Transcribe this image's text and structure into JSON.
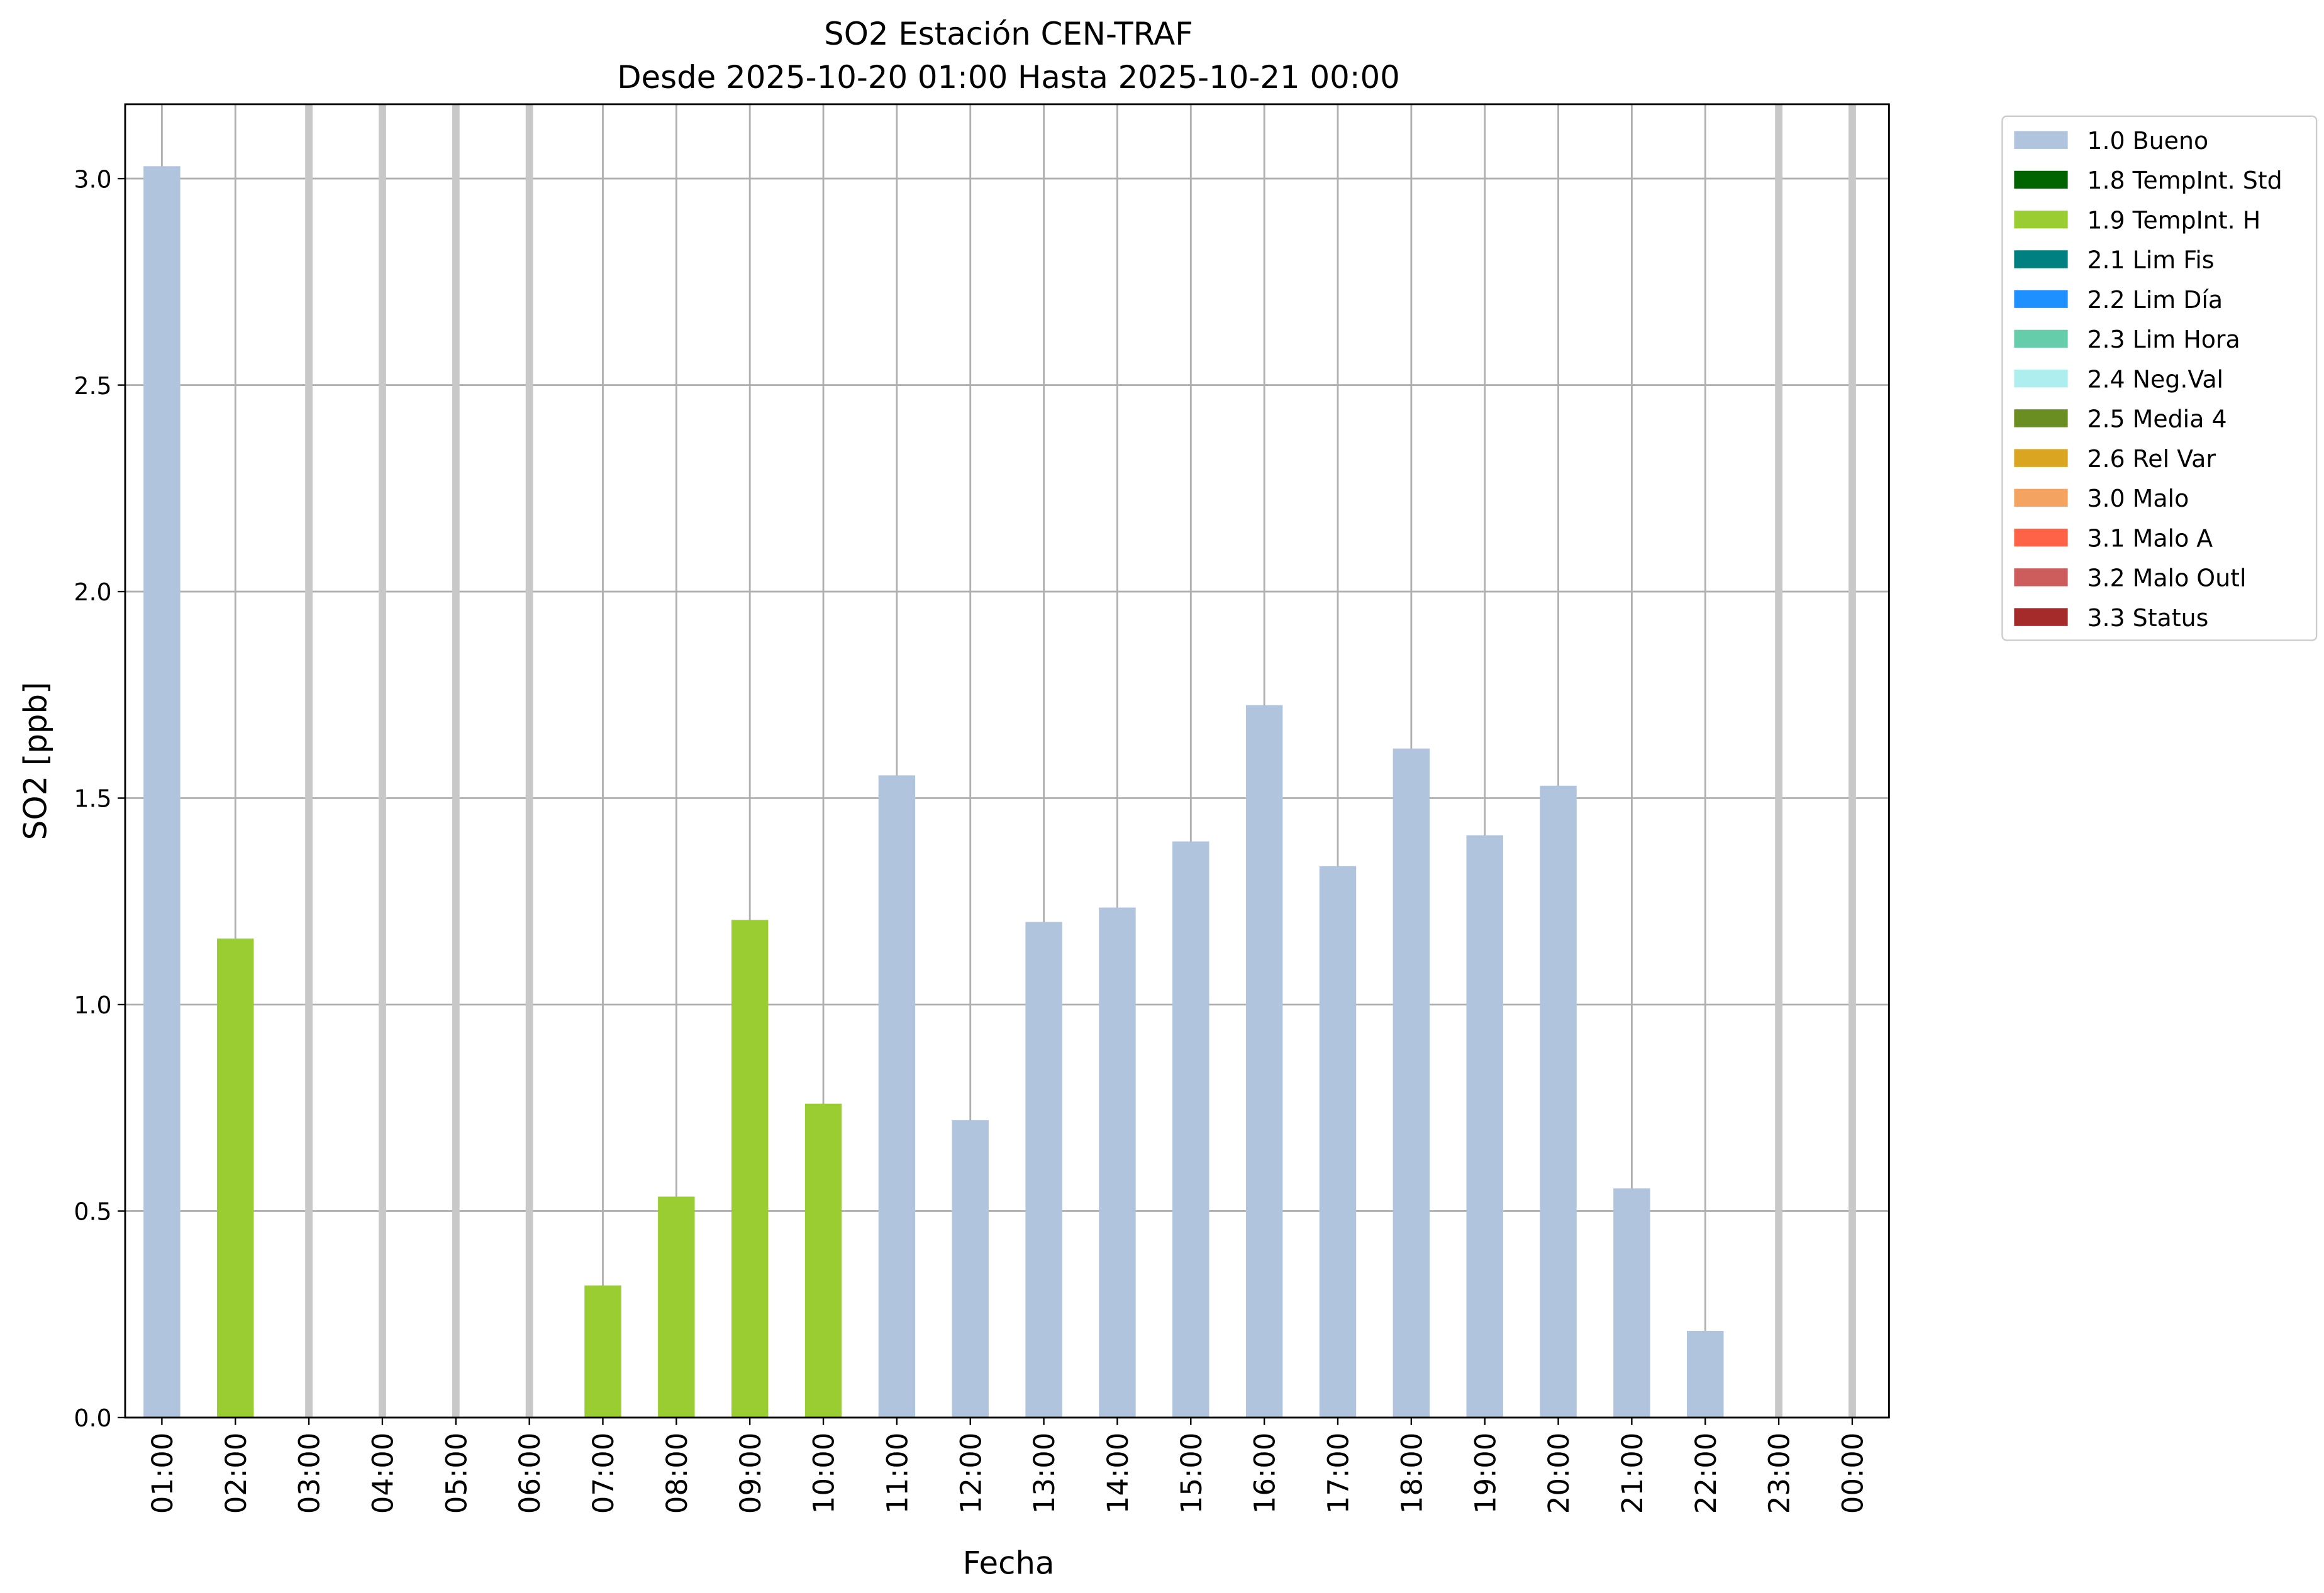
{
  "chart_data": {
    "type": "bar",
    "stacked": true,
    "title": "SO2 Estación CEN-TRAF",
    "subtitle": "Desde 2025-10-20 01:00 Hasta 2025-10-21 00:00",
    "xlabel": "Fecha",
    "ylabel": "SO2 [ppb]",
    "categories": [
      "01:00",
      "02:00",
      "03:00",
      "04:00",
      "05:00",
      "06:00",
      "07:00",
      "08:00",
      "09:00",
      "10:00",
      "11:00",
      "12:00",
      "13:00",
      "14:00",
      "15:00",
      "16:00",
      "17:00",
      "18:00",
      "19:00",
      "20:00",
      "21:00",
      "22:00",
      "23:00",
      "00:00"
    ],
    "series": [
      {
        "name": "1.0 Bueno",
        "color": "#b0c4de",
        "values": [
          3.03,
          null,
          null,
          null,
          null,
          null,
          null,
          null,
          null,
          null,
          1.555,
          0.72,
          1.2,
          1.235,
          1.395,
          1.725,
          1.335,
          1.62,
          1.41,
          1.53,
          0.555,
          0.21,
          null,
          null
        ]
      },
      {
        "name": "1.8 TempInt. Std",
        "color": "#006400",
        "values": [
          null,
          null,
          null,
          null,
          null,
          null,
          null,
          null,
          null,
          null,
          null,
          null,
          null,
          null,
          null,
          null,
          null,
          null,
          null,
          null,
          null,
          null,
          null,
          null
        ]
      },
      {
        "name": "1.9 TempInt. H",
        "color": "#9acd32",
        "values": [
          null,
          1.16,
          null,
          null,
          null,
          null,
          0.32,
          0.535,
          1.205,
          0.76,
          null,
          null,
          null,
          null,
          null,
          null,
          null,
          null,
          null,
          null,
          null,
          null,
          null,
          null
        ]
      },
      {
        "name": "2.1 Lim Fis",
        "color": "#008080",
        "values": [
          null,
          null,
          null,
          null,
          null,
          null,
          null,
          null,
          null,
          null,
          null,
          null,
          null,
          null,
          null,
          null,
          null,
          null,
          null,
          null,
          null,
          null,
          null,
          null
        ]
      },
      {
        "name": "2.2 Lim Día",
        "color": "#1e90ff",
        "values": [
          null,
          null,
          null,
          null,
          null,
          null,
          null,
          null,
          null,
          null,
          null,
          null,
          null,
          null,
          null,
          null,
          null,
          null,
          null,
          null,
          null,
          null,
          null,
          null
        ]
      },
      {
        "name": "2.3 Lim Hora",
        "color": "#66cdaa",
        "values": [
          null,
          null,
          null,
          null,
          null,
          null,
          null,
          null,
          null,
          null,
          null,
          null,
          null,
          null,
          null,
          null,
          null,
          null,
          null,
          null,
          null,
          null,
          null,
          null
        ]
      },
      {
        "name": "2.4 Neg.Val",
        "color": "#afeeee",
        "values": [
          null,
          null,
          null,
          null,
          null,
          null,
          null,
          null,
          null,
          null,
          null,
          null,
          null,
          null,
          null,
          null,
          null,
          null,
          null,
          null,
          null,
          null,
          null,
          null
        ]
      },
      {
        "name": "2.5 Media 4",
        "color": "#6b8e23",
        "values": [
          null,
          null,
          null,
          null,
          null,
          null,
          null,
          null,
          null,
          null,
          null,
          null,
          null,
          null,
          null,
          null,
          null,
          null,
          null,
          null,
          null,
          null,
          null,
          null
        ]
      },
      {
        "name": "2.6 Rel Var",
        "color": "#daa520",
        "values": [
          null,
          null,
          null,
          null,
          null,
          null,
          null,
          null,
          null,
          null,
          null,
          null,
          null,
          null,
          null,
          null,
          null,
          null,
          null,
          null,
          null,
          null,
          null,
          null
        ]
      },
      {
        "name": "3.0 Malo",
        "color": "#f4a460",
        "values": [
          null,
          null,
          null,
          null,
          null,
          null,
          null,
          null,
          null,
          null,
          null,
          null,
          null,
          null,
          null,
          null,
          null,
          null,
          null,
          null,
          null,
          null,
          null,
          null
        ]
      },
      {
        "name": "3.1 Malo A",
        "color": "#ff6347",
        "values": [
          null,
          null,
          null,
          null,
          null,
          null,
          null,
          null,
          null,
          null,
          null,
          null,
          null,
          null,
          null,
          null,
          null,
          null,
          null,
          null,
          null,
          null,
          null,
          null
        ]
      },
      {
        "name": "3.2 Malo Outl",
        "color": "#cd5c5c",
        "values": [
          null,
          null,
          null,
          null,
          null,
          null,
          null,
          null,
          null,
          null,
          null,
          null,
          null,
          null,
          null,
          null,
          null,
          null,
          null,
          null,
          null,
          null,
          null,
          null
        ]
      },
      {
        "name": "3.3 Status",
        "color": "#a52a2a",
        "values": [
          null,
          null,
          null,
          null,
          null,
          null,
          null,
          null,
          null,
          null,
          null,
          null,
          null,
          null,
          null,
          null,
          null,
          null,
          null,
          null,
          null,
          null,
          null,
          null
        ]
      }
    ],
    "ylim": [
      0,
      3.18
    ],
    "yticks": [
      {
        "value": 0,
        "label": "0.0"
      },
      0.5,
      {
        "value": 1,
        "label": "1.0"
      },
      1.5,
      {
        "value": 2,
        "label": "2.0"
      },
      2.5,
      {
        "value": 3,
        "label": "3.0"
      }
    ],
    "grid": true,
    "legend": "outside right"
  }
}
